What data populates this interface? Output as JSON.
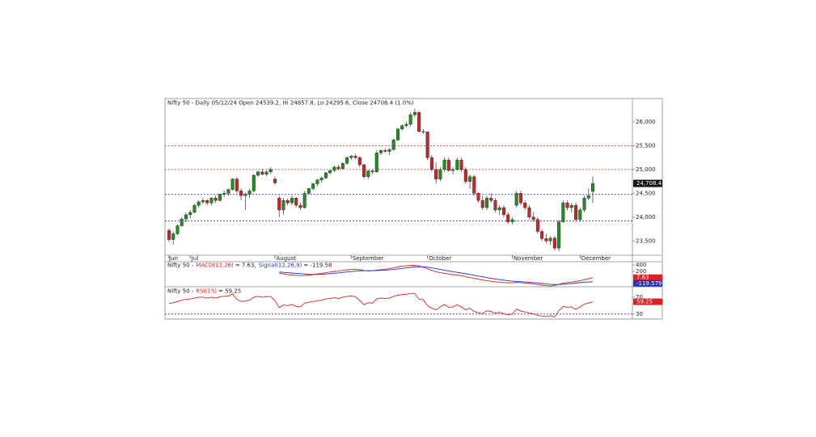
{
  "chart_data": [
    {
      "type": "candlestick",
      "title": "Nifty 50 - Daily 05/12/24 Open 24539.2, Hi 24857.8, Lo 24295.6, Close 24708.4 (1.0%)",
      "up_color": "#1f8f1f",
      "down_color": "#d42020",
      "ylim": [
        23200,
        26490
      ],
      "yticks": [
        {
          "value": 23500,
          "label": "23,500"
        },
        {
          "value": 24000,
          "label": "24,000"
        },
        {
          "value": 24500,
          "label": "24,500"
        },
        {
          "value": 25000,
          "label": "25,000"
        },
        {
          "value": 25500,
          "label": "25,500"
        },
        {
          "value": 26000,
          "label": "26,000"
        }
      ],
      "xticks": [
        {
          "value": 0,
          "label": "Jun"
        },
        {
          "value": 5,
          "label": "Jul"
        },
        {
          "value": 25,
          "label": "August"
        },
        {
          "value": 43,
          "label": "September"
        },
        {
          "value": 61,
          "label": "October"
        },
        {
          "value": 81,
          "label": "November"
        },
        {
          "value": 97,
          "label": "December"
        }
      ],
      "reference_lines": [
        {
          "value": 25500,
          "color": "#e03030"
        },
        {
          "value": 25000,
          "color": "#e03030"
        },
        {
          "value": 24480,
          "color": "#3030d0"
        },
        {
          "value": 23920,
          "color": "#3030d0"
        }
      ],
      "last_close_label": "24,708.4",
      "ohlc": [
        [
          23720,
          23760,
          23480,
          23530
        ],
        [
          23530,
          23700,
          23420,
          23650
        ],
        [
          23650,
          23850,
          23620,
          23820
        ],
        [
          23820,
          24000,
          23800,
          23960
        ],
        [
          23960,
          24100,
          23900,
          24050
        ],
        [
          24050,
          24150,
          23980,
          24100
        ],
        [
          24100,
          24280,
          24080,
          24250
        ],
        [
          24250,
          24350,
          24200,
          24320
        ],
        [
          24320,
          24400,
          24280,
          24350
        ],
        [
          24350,
          24380,
          24250,
          24300
        ],
        [
          24300,
          24420,
          24250,
          24400
        ],
        [
          24400,
          24450,
          24300,
          24350
        ],
        [
          24350,
          24500,
          24330,
          24480
        ],
        [
          24480,
          24560,
          24420,
          24500
        ],
        [
          24500,
          24600,
          24450,
          24580
        ],
        [
          24580,
          24820,
          24560,
          24800
        ],
        [
          24800,
          24840,
          24500,
          24550
        ],
        [
          24550,
          24600,
          24350,
          24450
        ],
        [
          24450,
          24520,
          24150,
          24480
        ],
        [
          24480,
          24600,
          24400,
          24550
        ],
        [
          24550,
          24900,
          24520,
          24880
        ],
        [
          24880,
          24980,
          24850,
          24950
        ],
        [
          24950,
          25020,
          24880,
          24900
        ],
        [
          24900,
          24980,
          24860,
          24950
        ],
        [
          24950,
          25050,
          24900,
          25000
        ],
        [
          24800,
          24850,
          24680,
          24720
        ],
        [
          24400,
          24450,
          24000,
          24150
        ],
        [
          24150,
          24400,
          24050,
          24350
        ],
        [
          24350,
          24400,
          24250,
          24300
        ],
        [
          24300,
          24450,
          24250,
          24400
        ],
        [
          24400,
          24420,
          24200,
          24250
        ],
        [
          24250,
          24300,
          24150,
          24200
        ],
        [
          24200,
          24550,
          24180,
          24500
        ],
        [
          24500,
          24620,
          24480,
          24600
        ],
        [
          24600,
          24720,
          24560,
          24700
        ],
        [
          24700,
          24800,
          24650,
          24780
        ],
        [
          24780,
          24850,
          24720,
          24820
        ],
        [
          24820,
          24950,
          24800,
          24930
        ],
        [
          24930,
          25000,
          24900,
          24980
        ],
        [
          24980,
          25080,
          24950,
          25050
        ],
        [
          25050,
          25100,
          24980,
          25020
        ],
        [
          25020,
          25150,
          25000,
          25130
        ],
        [
          25130,
          25280,
          25100,
          25250
        ],
        [
          25250,
          25300,
          25200,
          25280
        ],
        [
          25280,
          25330,
          25220,
          25250
        ],
        [
          25250,
          25280,
          25050,
          25100
        ],
        [
          25100,
          25120,
          24800,
          24850
        ],
        [
          24850,
          25000,
          24800,
          24970
        ],
        [
          24970,
          25000,
          24900,
          24950
        ],
        [
          24950,
          25400,
          24930,
          25350
        ],
        [
          25350,
          25420,
          25300,
          25400
        ],
        [
          25400,
          25450,
          25350,
          25380
        ],
        [
          25380,
          25450,
          25300,
          25420
        ],
        [
          25420,
          25650,
          25400,
          25620
        ],
        [
          25620,
          25880,
          25600,
          25850
        ],
        [
          25850,
          25950,
          25820,
          25920
        ],
        [
          25920,
          26000,
          25880,
          25950
        ],
        [
          25950,
          26200,
          25900,
          26150
        ],
        [
          26150,
          26280,
          26100,
          26200
        ],
        [
          26200,
          26220,
          25780,
          25800
        ],
        [
          25800,
          25850,
          25750,
          25790
        ],
        [
          25790,
          25800,
          25200,
          25250
        ],
        [
          25250,
          25300,
          24950,
          25000
        ],
        [
          25000,
          25150,
          24700,
          24800
        ],
        [
          24800,
          25050,
          24750,
          25000
        ],
        [
          25000,
          25250,
          24950,
          25200
        ],
        [
          25200,
          25250,
          24950,
          24980
        ],
        [
          24980,
          25050,
          24900,
          25000
        ],
        [
          25000,
          25250,
          24980,
          25200
        ],
        [
          25200,
          25250,
          24950,
          25000
        ],
        [
          25000,
          25050,
          24700,
          24750
        ],
        [
          24750,
          24900,
          24600,
          24850
        ],
        [
          24850,
          24880,
          24450,
          24500
        ],
        [
          24500,
          24520,
          24300,
          24350
        ],
        [
          24350,
          24450,
          24150,
          24200
        ],
        [
          24200,
          24450,
          24150,
          24400
        ],
        [
          24400,
          24500,
          24300,
          24350
        ],
        [
          24350,
          24400,
          24100,
          24150
        ],
        [
          24150,
          24250,
          24050,
          24200
        ],
        [
          24200,
          24250,
          24000,
          24050
        ],
        [
          24050,
          24100,
          23850,
          23900
        ],
        [
          23900,
          24000,
          23850,
          23950
        ],
        [
          24250,
          24550,
          24200,
          24500
        ],
        [
          24500,
          24550,
          24250,
          24300
        ],
        [
          24300,
          24350,
          24150,
          24200
        ],
        [
          24200,
          24250,
          23950,
          24000
        ],
        [
          24000,
          24100,
          23900,
          23950
        ],
        [
          23950,
          24000,
          23650,
          23700
        ],
        [
          23700,
          23750,
          23500,
          23550
        ],
        [
          23550,
          23650,
          23450,
          23500
        ],
        [
          23500,
          23600,
          23420,
          23560
        ],
        [
          23560,
          23600,
          23300,
          23350
        ],
        [
          23350,
          23950,
          23280,
          23900
        ],
        [
          23900,
          24350,
          23880,
          24300
        ],
        [
          24300,
          24350,
          24150,
          24200
        ],
        [
          24200,
          24300,
          24100,
          24250
        ],
        [
          24250,
          24300,
          23900,
          23950
        ],
        [
          23950,
          24200,
          23900,
          24150
        ],
        [
          24150,
          24450,
          24100,
          24400
        ],
        [
          24400,
          24600,
          24350,
          24450
        ],
        [
          24539.2,
          24857.8,
          24295.6,
          24708.4
        ]
      ]
    },
    {
      "type": "line",
      "legend_prefix": "Nifty 50 -",
      "ylim": [
        -275,
        500
      ],
      "yticks": [
        400,
        200
      ],
      "series": [
        {
          "name": "MACD(12,26)",
          "value_text": "= 7.63,",
          "badge": "7.63",
          "color": "#e02020",
          "values": [
            null,
            null,
            null,
            null,
            null,
            null,
            null,
            null,
            null,
            null,
            null,
            null,
            null,
            null,
            null,
            null,
            null,
            null,
            null,
            null,
            null,
            null,
            null,
            null,
            null,
            null,
            150,
            120,
            100,
            90,
            80,
            70,
            75,
            85,
            100,
            120,
            140,
            160,
            180,
            200,
            210,
            230,
            250,
            260,
            265,
            250,
            230,
            215,
            220,
            240,
            255,
            265,
            285,
            310,
            340,
            360,
            375,
            385,
            390,
            370,
            330,
            280,
            230,
            190,
            160,
            140,
            120,
            100,
            85,
            70,
            40,
            10,
            -15,
            -40,
            -65,
            -85,
            -105,
            -120,
            -135,
            -145,
            -155,
            -150,
            -140,
            -145,
            -160,
            -175,
            -190,
            -205,
            -225,
            -240,
            -250,
            -235,
            -200,
            -165,
            -145,
            -130,
            -110,
            -85,
            -55,
            -25,
            7.63
          ]
        },
        {
          "name": "Signal(12,26,9)",
          "value_text": "= -119.58",
          "badge": "-119.579",
          "color": "#2030d0",
          "values": [
            null,
            null,
            null,
            null,
            null,
            null,
            null,
            null,
            null,
            null,
            null,
            null,
            null,
            null,
            null,
            null,
            null,
            null,
            null,
            null,
            null,
            null,
            null,
            null,
            null,
            null,
            180,
            170,
            160,
            150,
            140,
            130,
            120,
            112,
            108,
            108,
            112,
            120,
            130,
            142,
            155,
            168,
            182,
            195,
            208,
            216,
            220,
            222,
            224,
            228,
            234,
            240,
            249,
            261,
            277,
            293,
            310,
            325,
            338,
            345,
            342,
            330,
            310,
            286,
            261,
            237,
            214,
            191,
            170,
            150,
            128,
            104,
            80,
            56,
            32,
            9,
            -14,
            -35,
            -55,
            -73,
            -90,
            -102,
            -110,
            -117,
            -126,
            -136,
            -147,
            -158,
            -172,
            -185,
            -198,
            -206,
            -205,
            -197,
            -187,
            -175,
            -162,
            -147,
            -133,
            -128,
            -119.58
          ]
        }
      ]
    },
    {
      "type": "line",
      "legend_prefix": "Nifty 50 -",
      "ylim": [
        20,
        93
      ],
      "yticks": [
        70,
        30
      ],
      "guide": {
        "value": 30,
        "color": "#3030d0"
      },
      "series": [
        {
          "name": "RSI(15)",
          "value_text": "= 59.25",
          "badge": "59.25",
          "color": "#e02020",
          "values": [
            55,
            57,
            60,
            63,
            65,
            66,
            68,
            70,
            70,
            68,
            70,
            68,
            71,
            72,
            73,
            78,
            65,
            60,
            61,
            63,
            70,
            72,
            70,
            71,
            72,
            62,
            45,
            52,
            50,
            53,
            48,
            47,
            56,
            58,
            60,
            62,
            63,
            66,
            67,
            69,
            67,
            70,
            72,
            73,
            71,
            62,
            52,
            57,
            56,
            66,
            68,
            67,
            68,
            72,
            75,
            76,
            77,
            79,
            79,
            65,
            64,
            50,
            44,
            40,
            47,
            53,
            46,
            47,
            52,
            47,
            40,
            44,
            36,
            33,
            31,
            38,
            36,
            32,
            34,
            31,
            28,
            30,
            42,
            37,
            35,
            32,
            31,
            27,
            25,
            24,
            26,
            23,
            38,
            48,
            46,
            47,
            41,
            47,
            54,
            56,
            59.25
          ]
        }
      ]
    }
  ]
}
